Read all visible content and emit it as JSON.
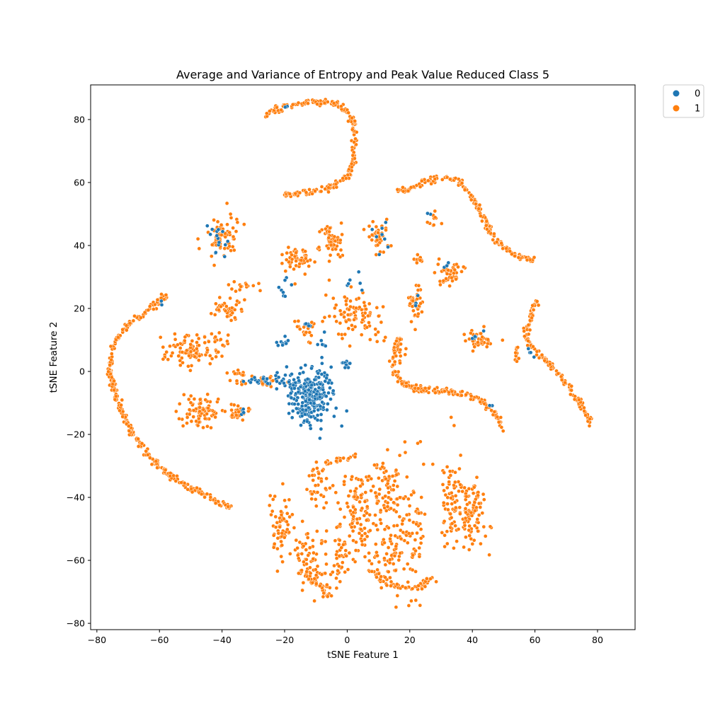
{
  "chart_data": {
    "type": "scatter",
    "title": "Average and Variance of Entropy and Peak Value Reduced Class 5",
    "xlabel": "tSNE Feature 1",
    "ylabel": "tSNE Feature 2",
    "xlim": [
      -82,
      92
    ],
    "ylim": [
      -82,
      91
    ],
    "xticks": [
      -80,
      -60,
      -40,
      -20,
      0,
      20,
      40,
      60,
      80
    ],
    "yticks": [
      -80,
      -60,
      -40,
      -20,
      0,
      20,
      40,
      60,
      80
    ],
    "grid": false,
    "legend_position": "outside-top-right",
    "series": [
      {
        "name": "0",
        "color": "#1f77b4",
        "clusters": [
          {
            "cx": -12,
            "cy": -10,
            "sx": 3,
            "sy": 4,
            "n": 180
          },
          {
            "cx": -16,
            "cy": -4,
            "sx": 3,
            "sy": 2,
            "n": 40
          },
          {
            "cx": -24,
            "cy": -3,
            "sx": 4,
            "sy": 1,
            "n": 25
          },
          {
            "cx": -8,
            "cy": -3,
            "sx": 2,
            "sy": 3,
            "n": 25
          },
          {
            "cx": 0,
            "cy": 2,
            "sx": 0.8,
            "sy": 1,
            "n": 10
          },
          {
            "cx": -20,
            "cy": 10,
            "sx": 1.2,
            "sy": 1.2,
            "n": 10
          },
          {
            "cx": -40,
            "cy": 42,
            "sx": 2,
            "sy": 3,
            "n": 15
          },
          {
            "cx": -20,
            "cy": 26,
            "sx": 1,
            "sy": 1.5,
            "n": 8
          },
          {
            "cx": -33,
            "cy": -13,
            "sx": 1,
            "sy": 1,
            "n": 5
          },
          {
            "cx": 2,
            "cy": 28,
            "sx": 2,
            "sy": 2,
            "n": 6
          },
          {
            "cx": 11,
            "cy": 43,
            "sx": 1.5,
            "sy": 3,
            "n": 8
          },
          {
            "cx": -12,
            "cy": 15,
            "sx": 1.5,
            "sy": 1,
            "n": 5
          },
          {
            "cx": -7,
            "cy": 9,
            "sx": 1.5,
            "sy": 1.5,
            "n": 6
          }
        ],
        "paths": [
          {
            "pts": [
              [
                -20,
                84
              ],
              [
                -19,
                84
              ]
            ],
            "n": 2
          },
          {
            "pts": [
              [
                -60,
                21
              ],
              [
                -59,
                22
              ]
            ],
            "n": 2
          },
          {
            "pts": [
              [
                40,
                10
              ],
              [
                43,
                12
              ]
            ],
            "n": 5
          },
          {
            "pts": [
              [
                31,
                33
              ],
              [
                33,
                35
              ]
            ],
            "n": 4
          },
          {
            "pts": [
              [
                22,
                24
              ],
              [
                22,
                21
              ]
            ],
            "n": 3
          },
          {
            "pts": [
              [
                58,
                8
              ],
              [
                60,
                4
              ]
            ],
            "n": 4
          },
          {
            "pts": [
              [
                45,
                -10
              ],
              [
                46,
                -11
              ]
            ],
            "n": 2
          },
          {
            "pts": [
              [
                26,
                50
              ],
              [
                27,
                49
              ]
            ],
            "n": 2
          }
        ]
      },
      {
        "name": "1",
        "color": "#ff7f0e",
        "clusters": [
          {
            "cx": -40,
            "cy": 43,
            "sx": 2.5,
            "sy": 3.5,
            "n": 70
          },
          {
            "cx": -16,
            "cy": 36,
            "sx": 2.5,
            "sy": 2,
            "n": 50
          },
          {
            "cx": -5,
            "cy": 41,
            "sx": 2,
            "sy": 3,
            "n": 60
          },
          {
            "cx": 10,
            "cy": 43,
            "sx": 2,
            "sy": 3,
            "n": 40
          },
          {
            "cx": 4,
            "cy": 18,
            "sx": 4,
            "sy": 3.5,
            "n": 90
          },
          {
            "cx": -39,
            "cy": 20,
            "sx": 2.5,
            "sy": 1.5,
            "n": 40
          },
          {
            "cx": -35,
            "cy": 27,
            "sx": 3,
            "sy": 0.8,
            "n": 15
          },
          {
            "cx": -50,
            "cy": 7,
            "sx": 4,
            "sy": 2.5,
            "n": 100
          },
          {
            "cx": -47,
            "cy": -13,
            "sx": 3,
            "sy": 2.5,
            "n": 80
          },
          {
            "cx": -35,
            "cy": -13,
            "sx": 2,
            "sy": 1.2,
            "n": 30
          },
          {
            "cx": -35,
            "cy": -1,
            "sx": 1.5,
            "sy": 1.5,
            "n": 15
          },
          {
            "cx": -27,
            "cy": -3,
            "sx": 4,
            "sy": 1,
            "n": 20
          },
          {
            "cx": -13,
            "cy": 13,
            "sx": 2,
            "sy": 2,
            "n": 20
          },
          {
            "cx": -40,
            "cy": 10,
            "sx": 1.5,
            "sy": 1.5,
            "n": 12
          },
          {
            "cx": 22,
            "cy": 21,
            "sx": 1.5,
            "sy": 3,
            "n": 35
          },
          {
            "cx": 23,
            "cy": 35,
            "sx": 1.2,
            "sy": 1,
            "n": 10
          },
          {
            "cx": 33,
            "cy": 31,
            "sx": 2,
            "sy": 2,
            "n": 45
          },
          {
            "cx": 42,
            "cy": 10,
            "sx": 2.5,
            "sy": 1.5,
            "n": 40
          },
          {
            "cx": 28,
            "cy": 48,
            "sx": 1,
            "sy": 1,
            "n": 10
          },
          {
            "cx": 54,
            "cy": 6,
            "sx": 0.5,
            "sy": 1.5,
            "n": 10
          },
          {
            "cx": 17,
            "cy": 5,
            "sx": 1,
            "sy": 2,
            "n": 10
          },
          {
            "cx": -21,
            "cy": -48,
            "sx": 2,
            "sy": 5,
            "n": 60
          },
          {
            "cx": -12,
            "cy": -58,
            "sx": 3,
            "sy": 4,
            "n": 50
          },
          {
            "cx": -9,
            "cy": -66,
            "sx": 3,
            "sy": 3,
            "n": 40
          },
          {
            "cx": -9,
            "cy": -35,
            "sx": 2,
            "sy": 4,
            "n": 40
          },
          {
            "cx": 3,
            "cy": -45,
            "sx": 3,
            "sy": 7,
            "n": 110
          },
          {
            "cx": 12,
            "cy": -40,
            "sx": 3,
            "sy": 4,
            "n": 55
          },
          {
            "cx": 13,
            "cy": -58,
            "sx": 2.5,
            "sy": 5,
            "n": 60
          },
          {
            "cx": 20,
            "cy": -48,
            "sx": 2.5,
            "sy": 10,
            "n": 90
          },
          {
            "cx": 33,
            "cy": -40,
            "sx": 1.5,
            "sy": 8,
            "n": 60
          },
          {
            "cx": 39,
            "cy": -47,
            "sx": 2.5,
            "sy": 6,
            "n": 80
          },
          {
            "cx": 40,
            "cy": -40,
            "sx": 1.5,
            "sy": 3,
            "n": 25
          },
          {
            "cx": -2,
            "cy": -58,
            "sx": 2,
            "sy": 4,
            "n": 35
          }
        ],
        "paths": [
          {
            "pts": [
              [
                -27,
                80
              ],
              [
                -25,
                82
              ],
              [
                -20,
                84
              ],
              [
                -13,
                85.5
              ],
              [
                -5,
                85.5
              ],
              [
                0,
                83
              ],
              [
                2,
                79
              ],
              [
                2.5,
                72
              ],
              [
                2,
                66
              ],
              [
                0,
                62
              ],
              [
                -4,
                59
              ],
              [
                -10,
                57
              ],
              [
                -15,
                56.5
              ],
              [
                -20,
                56
              ]
            ],
            "n": 230
          },
          {
            "pts": [
              [
                -58,
                24
              ],
              [
                -62,
                21
              ],
              [
                -67,
                17
              ],
              [
                -72,
                13
              ],
              [
                -75,
                8
              ],
              [
                -76,
                0
              ],
              [
                -74,
                -8
              ],
              [
                -71,
                -15
              ],
              [
                -68,
                -21
              ],
              [
                -63,
                -27
              ],
              [
                -58,
                -32
              ],
              [
                -52,
                -36
              ],
              [
                -46,
                -39
              ],
              [
                -41,
                -42
              ],
              [
                -37,
                -43
              ]
            ],
            "n": 330
          },
          {
            "pts": [
              [
                16,
                57.5
              ],
              [
                20,
                58
              ],
              [
                24,
                60
              ],
              [
                30,
                61.5
              ],
              [
                35,
                61
              ],
              [
                38,
                58
              ],
              [
                42,
                52
              ],
              [
                45,
                46
              ],
              [
                48,
                41
              ],
              [
                52,
                38
              ],
              [
                56,
                36.5
              ],
              [
                60,
                35
              ]
            ],
            "n": 180
          },
          {
            "pts": [
              [
                17,
                11
              ],
              [
                15,
                6
              ],
              [
                15,
                0
              ],
              [
                17,
                -3
              ],
              [
                21,
                -5.5
              ],
              [
                28,
                -6
              ],
              [
                35,
                -6.5
              ],
              [
                40,
                -8
              ],
              [
                44,
                -10
              ],
              [
                47,
                -13
              ],
              [
                49,
                -16
              ],
              [
                50,
                -19
              ]
            ],
            "n": 190
          },
          {
            "pts": [
              [
                60,
                22
              ],
              [
                59,
                18
              ],
              [
                57,
                12
              ],
              [
                59,
                8
              ],
              [
                63,
                4
              ],
              [
                67,
                0
              ],
              [
                70,
                -4
              ],
              [
                73,
                -8
              ],
              [
                76,
                -13
              ],
              [
                78,
                -17
              ]
            ],
            "n": 150
          },
          {
            "pts": [
              [
                -7,
                -30
              ],
              [
                -3,
                -28
              ],
              [
                2,
                -27
              ],
              [
                3,
                -26.5
              ]
            ],
            "n": 20
          },
          {
            "pts": [
              [
                7,
                -63
              ],
              [
                12,
                -67
              ],
              [
                18,
                -69
              ],
              [
                24,
                -68
              ],
              [
                27,
                -65
              ]
            ],
            "n": 55
          },
          {
            "pts": [
              [
                -15,
                -63
              ],
              [
                -9,
                -68
              ],
              [
                -5,
                -72
              ]
            ],
            "n": 30
          },
          {
            "pts": [
              [
                9,
                -30
              ],
              [
                15,
                -32
              ],
              [
                19,
                -33
              ]
            ],
            "n": 15
          }
        ]
      }
    ]
  }
}
